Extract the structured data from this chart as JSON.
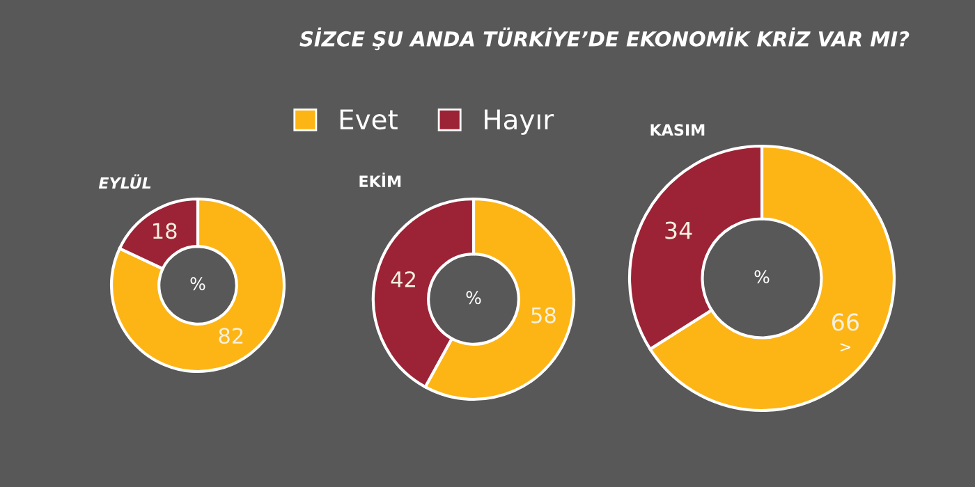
{
  "chart_data": [
    {
      "type": "donut",
      "title": "EYLÜL",
      "categories": [
        "Evet",
        "Hayır"
      ],
      "values": [
        82,
        18
      ],
      "colors": [
        "#fdb515",
        "#9b2335"
      ],
      "data_labels": true,
      "legend": "top",
      "annotations": [
        "SİZCE ŞU ANDA TÜRKİYE’DE EKONOMİK KRİZ VAR MI?",
        "%"
      ]
    },
    {
      "type": "donut",
      "title": "EKİM",
      "categories": [
        null,
        null
      ],
      "values": [
        58,
        42
      ],
      "colors": [
        "#fdb515",
        "#9b2335"
      ],
      "data_labels": true,
      "annotations": [
        "%"
      ]
    },
    {
      "type": "donut",
      "title": "KASIM",
      "categories": [
        null,
        null
      ],
      "values": [
        66,
        34
      ],
      "colors": [
        "#fdb515",
        "#9b2335"
      ],
      "data_labels": true,
      "annotations": [
        "%",
        ">"
      ]
    }
  ]
}
